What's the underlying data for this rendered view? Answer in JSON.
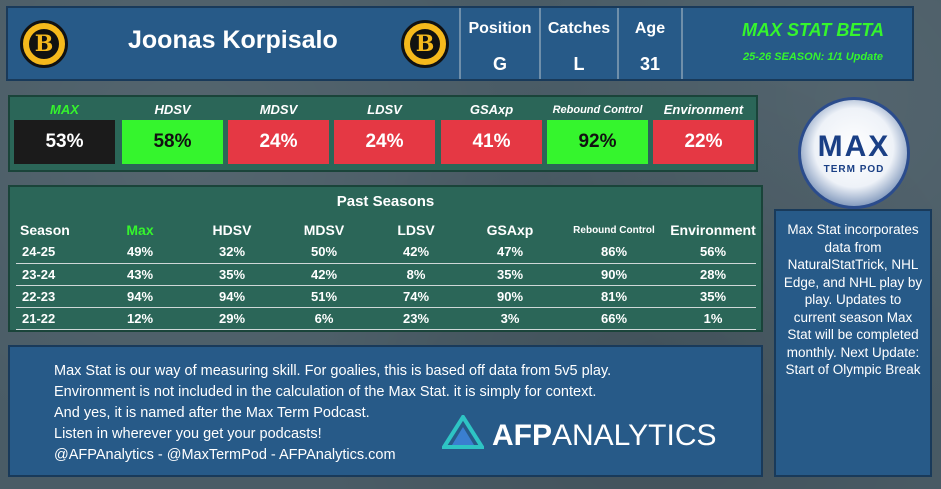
{
  "header": {
    "player_name": "Joonas Korpisalo",
    "position_label": "Position",
    "position_value": "G",
    "catches_label": "Catches",
    "catches_value": "L",
    "age_label": "Age",
    "age_value": "31",
    "beta_title": "MAX STAT BETA",
    "beta_subtitle": "25-26 SEASON: 1/1 Update",
    "team_logo_letter": "B",
    "team_logo_icon": "bruins-logo-icon"
  },
  "stats": [
    {
      "name": "MAX",
      "value": "53%",
      "tone": "dark",
      "name_color": "#35f52d"
    },
    {
      "name": "HDSV",
      "value": "58%",
      "tone": "green"
    },
    {
      "name": "MDSV",
      "value": "24%",
      "tone": "red"
    },
    {
      "name": "LDSV",
      "value": "24%",
      "tone": "red"
    },
    {
      "name": "GSAxp",
      "value": "41%",
      "tone": "red"
    },
    {
      "name": "Rebound Control",
      "value": "92%",
      "tone": "green"
    },
    {
      "name": "Environment",
      "value": "22%",
      "tone": "red"
    }
  ],
  "past": {
    "title": "Past Seasons",
    "headers": [
      "Season",
      "Max",
      "HDSV",
      "MDSV",
      "LDSV",
      "GSAxp",
      "Rebound Control",
      "Environment"
    ],
    "rows": [
      [
        "24-25",
        "49%",
        "32%",
        "50%",
        "42%",
        "47%",
        "86%",
        "56%"
      ],
      [
        "23-24",
        "43%",
        "35%",
        "42%",
        "8%",
        "35%",
        "90%",
        "28%"
      ],
      [
        "22-23",
        "94%",
        "94%",
        "51%",
        "74%",
        "90%",
        "81%",
        "35%"
      ],
      [
        "21-22",
        "12%",
        "29%",
        "6%",
        "23%",
        "3%",
        "66%",
        "1%"
      ]
    ]
  },
  "info": {
    "lines": [
      "Max Stat is our way of measuring skill. For goalies, this is based off data from 5v5 play.",
      "Environment is not included in the calculation of the Max Stat. it is simply for context.",
      "And yes, it is named after the Max Term Podcast.",
      "Listen in wherever you get your podcasts!",
      "@AFPAnalytics - @MaxTermPod - AFPAnalytics.com"
    ],
    "brand_bold": "AFP",
    "brand_rest": "ANALYTICS"
  },
  "podcast": {
    "top": "MAX",
    "bottom": "TERM POD"
  },
  "side_text": "Max Stat incorporates data from NaturalStatTrick, NHL Edge, and NHL play by play. Updates to current season Max Stat will be completed monthly. Next Update: Start of Olympic Break",
  "colors": {
    "green": "#35f52d",
    "red": "#e53844",
    "dark": "#1b1b1b",
    "panel_blue": "#275a88",
    "panel_green": "#2b6658"
  }
}
